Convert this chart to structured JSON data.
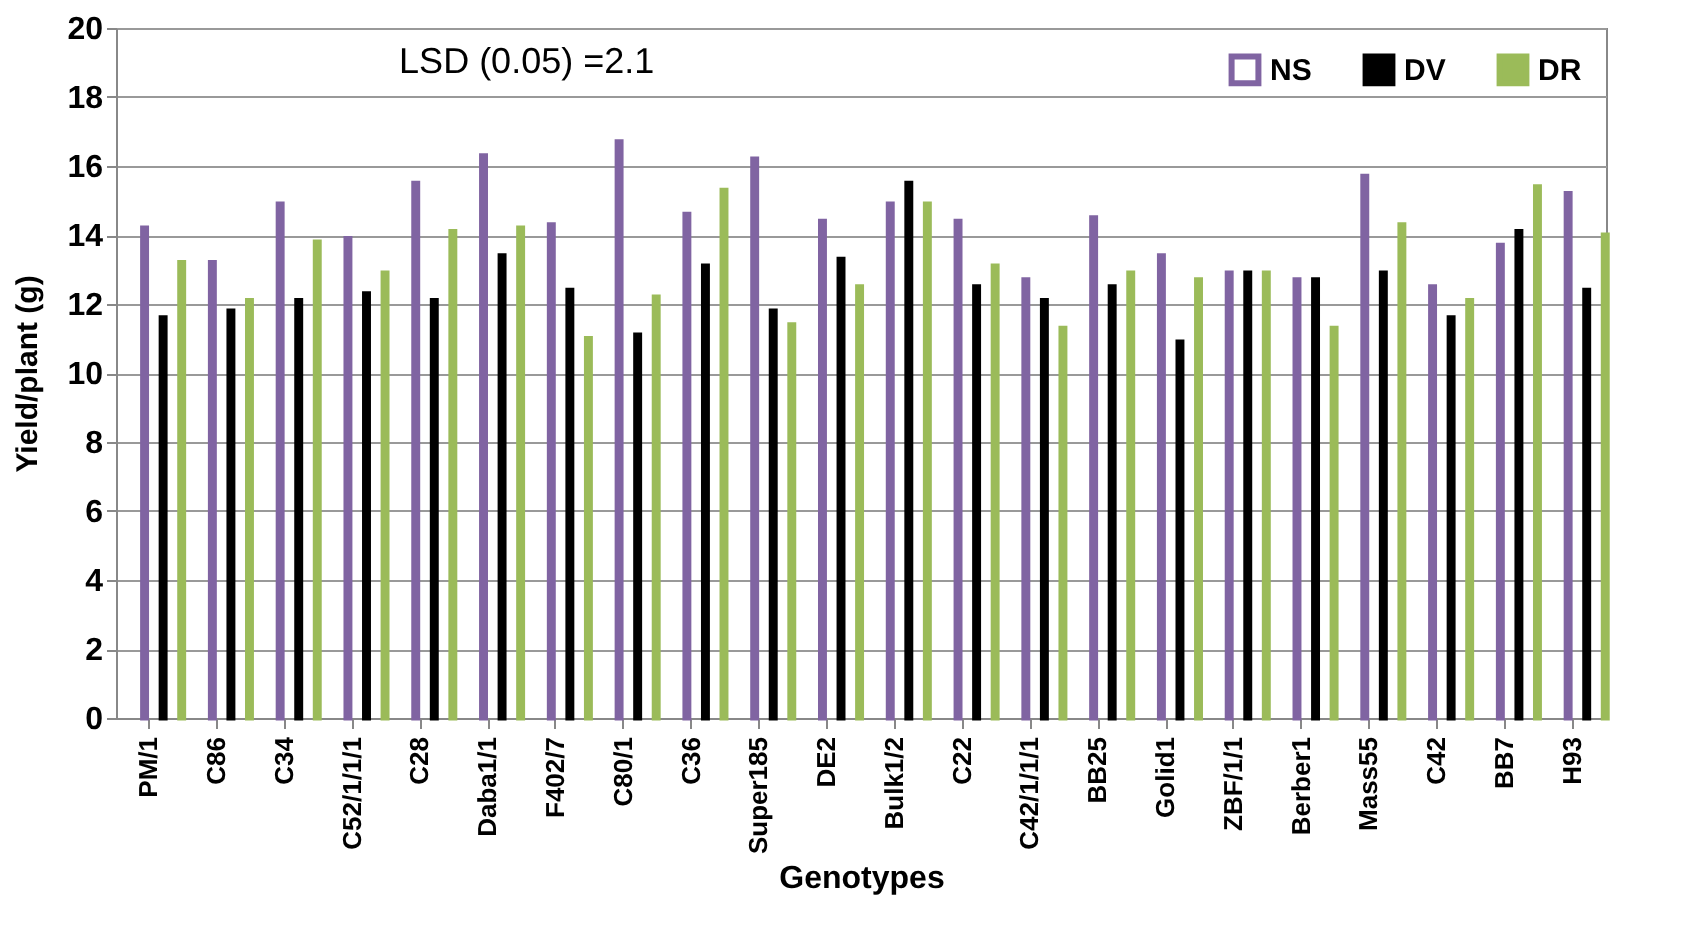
{
  "chart_data": {
    "type": "bar",
    "xlabel": "Genotypes",
    "ylabel": "Yield/plant (g)",
    "categories": [
      "PM/1",
      "C86",
      "C34",
      "C52/1/1/1",
      "C28",
      "Daba1/1",
      "F402/7",
      "C80/1",
      "C36",
      "Super185",
      "DE2",
      "Bulk1/2",
      "C22",
      "C42/1/1/1",
      "BB25",
      "Golid1",
      "ZBF/1/1",
      "Berber1",
      "Mass55",
      "C42",
      "BB7",
      "H93"
    ],
    "series": [
      {
        "name": "NS",
        "color": "#8064a2",
        "values": [
          14.2,
          13.2,
          14.9,
          13.9,
          15.5,
          16.3,
          14.3,
          16.7,
          14.6,
          16.2,
          14.4,
          14.9,
          14.4,
          12.7,
          14.5,
          13.4,
          12.9,
          12.7,
          15.7,
          12.5,
          13.7,
          15.2
        ]
      },
      {
        "name": "DV",
        "color": "#000000",
        "values": [
          11.6,
          11.8,
          12.1,
          12.3,
          12.1,
          13.4,
          12.4,
          11.1,
          13.1,
          11.8,
          13.3,
          15.5,
          12.5,
          12.1,
          12.5,
          10.9,
          12.9,
          12.7,
          12.9,
          11.6,
          14.1,
          12.4
        ]
      },
      {
        "name": "DR",
        "color": "#9bbb59",
        "values": [
          13.2,
          12.1,
          13.8,
          12.9,
          14.1,
          14.2,
          11.0,
          12.2,
          15.3,
          11.4,
          12.5,
          14.9,
          13.1,
          11.3,
          12.9,
          12.7,
          12.9,
          11.3,
          14.3,
          12.1,
          15.4,
          14.0
        ]
      }
    ],
    "ylim": [
      0,
      20
    ],
    "yticks": [
      0,
      2,
      4,
      6,
      8,
      10,
      12,
      14,
      16,
      18,
      20
    ],
    "grid": "y",
    "legend": "top right",
    "annotations": [
      "LSD (0.05) =2.1"
    ]
  }
}
